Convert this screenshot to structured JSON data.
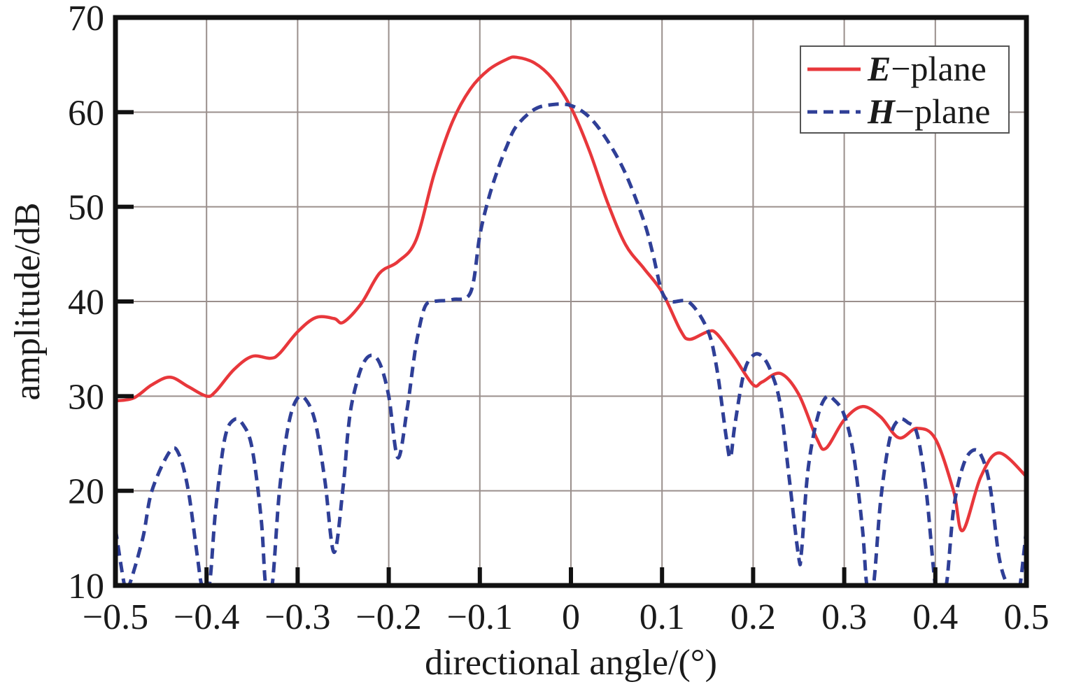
{
  "chart_data": {
    "type": "line",
    "xlabel": "directional angle/(°)",
    "ylabel": "amplitude/dB",
    "xlim": [
      -0.5,
      0.5
    ],
    "ylim": [
      10,
      70
    ],
    "xticks": [
      -0.5,
      -0.4,
      -0.3,
      -0.2,
      -0.1,
      0,
      0.1,
      0.2,
      0.3,
      0.4,
      0.5
    ],
    "xtick_labels": [
      "−0.5",
      "−0.4",
      "−0.3",
      "−0.2",
      "−0.1",
      "0",
      "0.1",
      "0.2",
      "0.3",
      "0.4",
      "0.5"
    ],
    "yticks": [
      10,
      20,
      30,
      40,
      50,
      60,
      70
    ],
    "ytick_labels": [
      "10",
      "20",
      "30",
      "40",
      "50",
      "60",
      "70"
    ],
    "grid": true,
    "legend_position": "top-right",
    "series": [
      {
        "name": "E−plane",
        "name_italic_part": "E",
        "name_rest": "−plane",
        "color": "#e8373b",
        "style": "solid",
        "x": [
          -0.5,
          -0.48,
          -0.46,
          -0.44,
          -0.42,
          -0.4,
          -0.39,
          -0.37,
          -0.35,
          -0.33,
          -0.32,
          -0.3,
          -0.28,
          -0.26,
          -0.25,
          -0.23,
          -0.21,
          -0.19,
          -0.17,
          -0.15,
          -0.13,
          -0.11,
          -0.09,
          -0.07,
          -0.06,
          -0.04,
          -0.02,
          0.0,
          0.02,
          0.04,
          0.06,
          0.08,
          0.1,
          0.12,
          0.13,
          0.15,
          0.16,
          0.18,
          0.2,
          0.21,
          0.23,
          0.25,
          0.27,
          0.28,
          0.3,
          0.32,
          0.34,
          0.36,
          0.38,
          0.4,
          0.42,
          0.43,
          0.45,
          0.47,
          0.5
        ],
        "y": [
          29.5,
          29.8,
          31.2,
          32.0,
          31.0,
          30.0,
          30.5,
          32.8,
          34.2,
          34.0,
          34.5,
          36.8,
          38.3,
          38.2,
          37.8,
          39.8,
          43.0,
          44.2,
          46.5,
          53.5,
          59.0,
          62.5,
          64.5,
          65.6,
          65.8,
          65.2,
          63.5,
          60.5,
          56.0,
          50.5,
          46.0,
          43.5,
          41.0,
          37.0,
          36.0,
          36.8,
          36.6,
          34.0,
          31.2,
          31.5,
          32.4,
          30.2,
          25.5,
          24.5,
          27.5,
          28.9,
          27.8,
          25.6,
          26.6,
          25.5,
          20.0,
          15.8,
          21.5,
          24.0,
          21.5
        ]
      },
      {
        "name": "H−plane",
        "name_italic_part": "H",
        "name_rest": "−plane",
        "color": "#2f3f97",
        "style": "dashed",
        "x": [
          -0.5,
          -0.49,
          -0.485,
          -0.47,
          -0.46,
          -0.44,
          -0.43,
          -0.42,
          -0.41,
          -0.405,
          -0.397,
          -0.39,
          -0.38,
          -0.37,
          -0.36,
          -0.35,
          -0.34,
          -0.335,
          -0.328,
          -0.32,
          -0.31,
          -0.3,
          -0.29,
          -0.28,
          -0.27,
          -0.26,
          -0.25,
          -0.245,
          -0.24,
          -0.23,
          -0.22,
          -0.21,
          -0.2,
          -0.19,
          -0.18,
          -0.173,
          -0.168,
          -0.16,
          -0.15,
          -0.13,
          -0.11,
          -0.1,
          -0.09,
          -0.08,
          -0.07,
          -0.06,
          -0.04,
          -0.02,
          0.0,
          0.02,
          0.04,
          0.06,
          0.08,
          0.09,
          0.1,
          0.11,
          0.13,
          0.15,
          0.16,
          0.17,
          0.175,
          0.18,
          0.19,
          0.2,
          0.21,
          0.22,
          0.23,
          0.24,
          0.25,
          0.253,
          0.26,
          0.27,
          0.28,
          0.29,
          0.3,
          0.31,
          0.32,
          0.325,
          0.332,
          0.34,
          0.35,
          0.36,
          0.37,
          0.38,
          0.39,
          0.4,
          0.405,
          0.412,
          0.42,
          0.43,
          0.44,
          0.45,
          0.46,
          0.47,
          0.48,
          0.49,
          0.493,
          0.5
        ],
        "y": [
          16.0,
          10.0,
          10.0,
          15.0,
          20.0,
          24.2,
          23.8,
          20.0,
          13.0,
          10.0,
          10.0,
          18.0,
          25.5,
          27.5,
          27.0,
          24.5,
          17.0,
          10.0,
          10.0,
          20.0,
          27.0,
          29.8,
          29.5,
          27.0,
          21.0,
          13.5,
          20.5,
          26.0,
          29.5,
          33.0,
          34.3,
          33.5,
          30.0,
          23.5,
          28.5,
          33.5,
          36.5,
          39.5,
          40.0,
          40.2,
          41.0,
          47.0,
          51.0,
          54.0,
          56.5,
          58.5,
          60.3,
          60.8,
          60.7,
          59.5,
          57.0,
          53.5,
          48.5,
          45.0,
          41.0,
          40.0,
          39.9,
          37.0,
          33.0,
          26.0,
          23.5,
          27.0,
          32.5,
          34.3,
          34.2,
          32.5,
          29.0,
          21.0,
          13.0,
          13.5,
          22.0,
          27.5,
          29.9,
          29.5,
          28.0,
          24.0,
          16.0,
          10.0,
          10.0,
          19.0,
          25.5,
          27.5,
          27.2,
          26.0,
          20.0,
          10.0,
          10.0,
          10.0,
          18.0,
          22.5,
          24.2,
          23.8,
          20.5,
          13.0,
          10.0,
          10.0,
          10.0,
          16.0
        ]
      }
    ]
  }
}
